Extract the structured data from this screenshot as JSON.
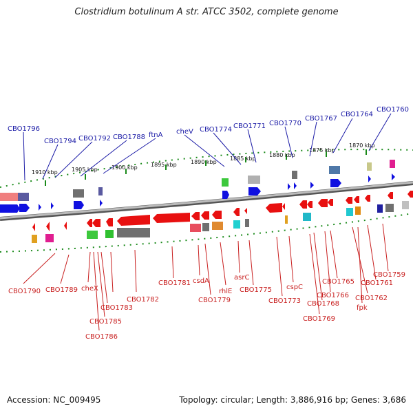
{
  "title": "Clostridium botulinum A str. ATCC 3502, complete genome",
  "footer": {
    "accession": "Accession: NC_009495",
    "summary": "Topology: circular; Length: 3,886,916 bp; Genes: 3,686"
  },
  "scale_labels": [
    "1910 kbp",
    "1905 kbp",
    "1900 kbp",
    "1895 kbp",
    "1890 kbp",
    "1885 kbp",
    "1880 kbp",
    "1875 kbp",
    "1870 kbp"
  ],
  "top_labels": [
    "CBO1796",
    "CBO1794",
    "CBO1792",
    "CBO1788",
    "ftnA",
    "cheV",
    "CBO1774",
    "CBO1771",
    "CBO1770",
    "CBO1767",
    "CBO1764",
    "CBO1760"
  ],
  "bottom_labels": [
    "CBO1790",
    "CBO1789",
    "cheX",
    "CBO1786",
    "CBO1785",
    "CBO1783",
    "CBO1782",
    "CBO1781",
    "csdA",
    "CBO1779",
    "rhlE",
    "asrC",
    "CBO1775",
    "CBO1773",
    "cspC",
    "CBO1769",
    "CBO1768",
    "CBO1766",
    "CBO1765",
    "CBO1762",
    "fpk",
    "CBO1761",
    "CBO1759"
  ],
  "colors": {
    "forward_gene": "#1010e0",
    "reverse_gene": "#e81010",
    "backbone": "#888888",
    "tick": "#1a8a1a"
  }
}
